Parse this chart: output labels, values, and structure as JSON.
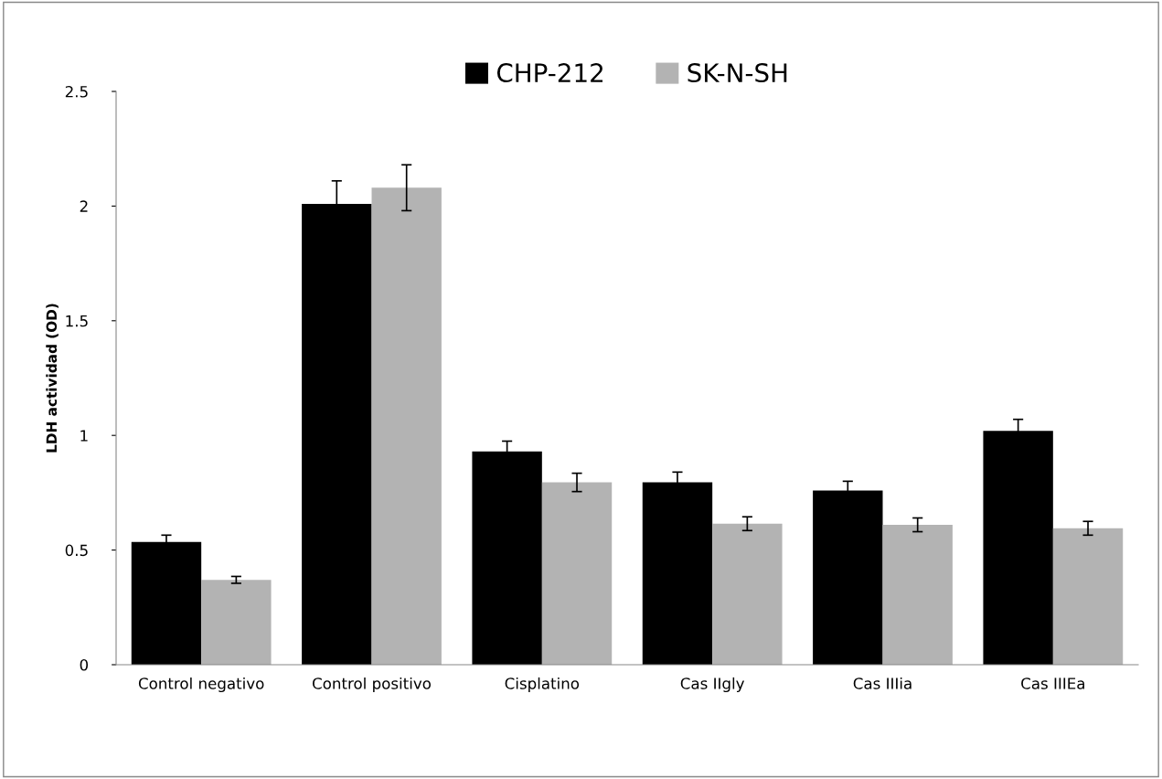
{
  "chart_data": {
    "type": "bar",
    "ylabel": "LDH actividad (OD)",
    "categories": [
      "Control negativo",
      "Control positivo",
      "Cisplatino",
      "Cas IIgly",
      "Cas IIIia",
      "Cas IIIEa"
    ],
    "series": [
      {
        "name": "CHP-212",
        "color": "#000000",
        "values": [
          0.535,
          2.01,
          0.93,
          0.795,
          0.76,
          1.02
        ],
        "errors": [
          0.03,
          0.1,
          0.045,
          0.045,
          0.04,
          0.05
        ]
      },
      {
        "name": "SK-N-SH",
        "color": "#b3b3b3",
        "values": [
          0.37,
          2.08,
          0.795,
          0.615,
          0.61,
          0.595
        ],
        "errors": [
          0.015,
          0.1,
          0.04,
          0.03,
          0.03,
          0.03
        ]
      }
    ],
    "ylim": [
      0,
      2.5
    ],
    "yticks": [
      0,
      0.5,
      1,
      1.5,
      2,
      2.5
    ],
    "grid": false,
    "legend": "top"
  }
}
